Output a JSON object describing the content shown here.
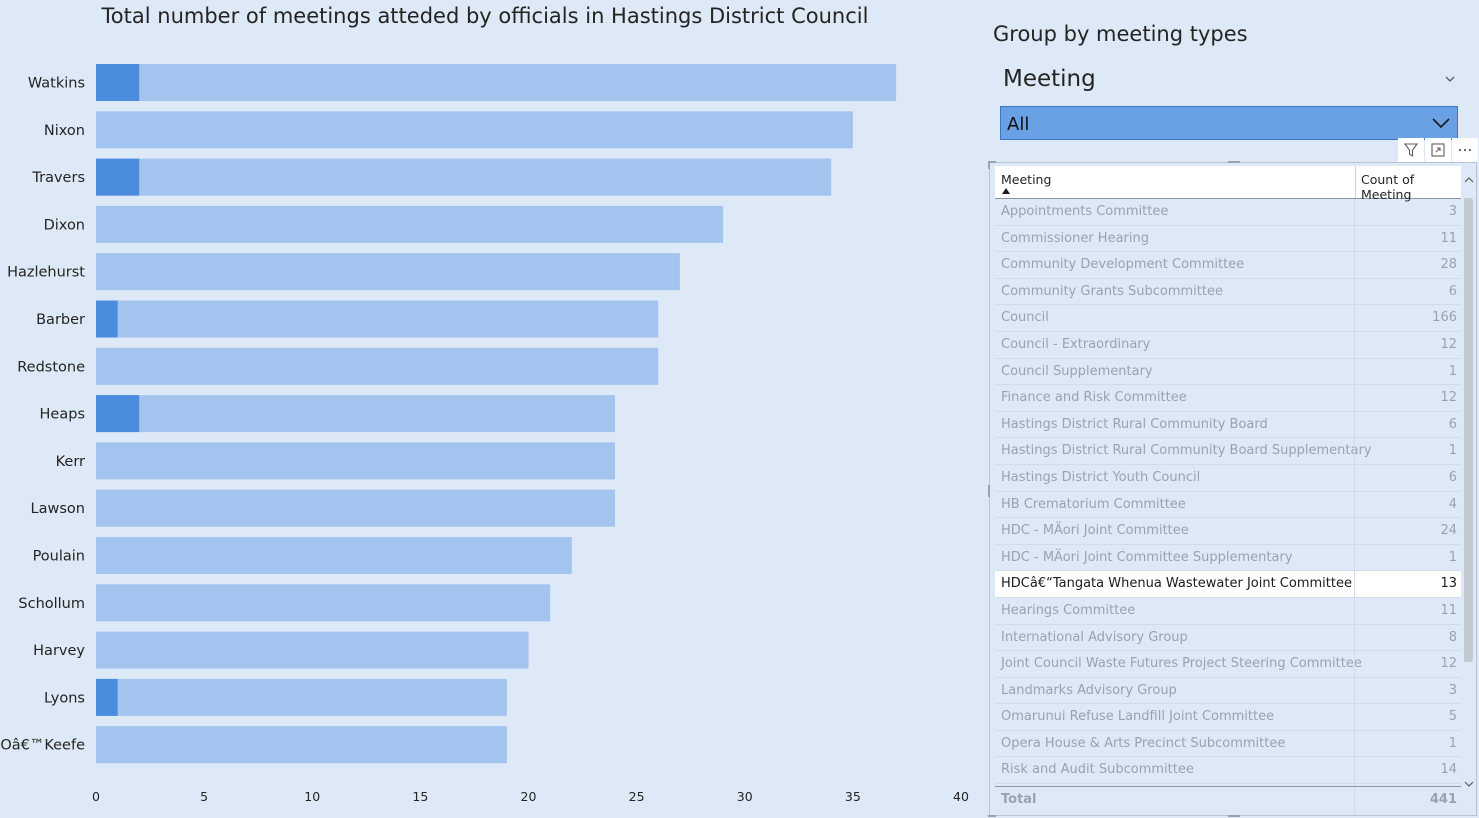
{
  "chart": {
    "title": "Total number of meetings atteded by officials in Hastings District Council"
  },
  "chart_data": {
    "type": "bar",
    "orientation": "horizontal",
    "title": "Total number of meetings atteded by officials in Hastings District Council",
    "xlabel": "",
    "ylabel": "",
    "xlim": [
      0,
      40
    ],
    "x_ticks": [
      0,
      5,
      10,
      15,
      20,
      25,
      30,
      35,
      40
    ],
    "categories": [
      "Watkins",
      "Nixon",
      "Travers",
      "Dixon",
      "Hazlehurst",
      "Barber",
      "Redstone",
      "Heaps",
      "Kerr",
      "Lawson",
      "Poulain",
      "Schollum",
      "Harvey",
      "Lyons",
      "Oâ€™Keefe"
    ],
    "total_values": [
      37,
      35,
      34,
      29,
      27,
      26,
      26,
      24,
      24,
      24,
      22,
      21,
      20,
      19,
      19
    ],
    "highlight_values": [
      2,
      0,
      2,
      0,
      0,
      1,
      0,
      2,
      0,
      0,
      0,
      0,
      0,
      1,
      0
    ],
    "grid": false,
    "colors": {
      "total": "#a3c4ee",
      "highlight": "#4a8ddf"
    }
  },
  "slicer": {
    "title": "Group by meeting types",
    "field_label": "Meeting",
    "selected_value": "All"
  },
  "table": {
    "columns": [
      "Meeting",
      "Count of Meeting"
    ],
    "rows": [
      {
        "name": "Appointments Committee",
        "count": "3"
      },
      {
        "name": "Commissioner Hearing",
        "count": "11"
      },
      {
        "name": "Community Development Committee",
        "count": "28"
      },
      {
        "name": "Community Grants Subcommittee",
        "count": "6"
      },
      {
        "name": "Council",
        "count": "166"
      },
      {
        "name": "Council - Extraordinary",
        "count": "12"
      },
      {
        "name": "Council Supplementary",
        "count": "1"
      },
      {
        "name": "Finance and Risk Committee",
        "count": "12"
      },
      {
        "name": "Hastings District Rural Community Board",
        "count": "6"
      },
      {
        "name": "Hastings District Rural Community Board Supplementary",
        "count": "1"
      },
      {
        "name": "Hastings District Youth Council",
        "count": "6"
      },
      {
        "name": "HB Crematorium Committee",
        "count": "4"
      },
      {
        "name": "HDC - MÄori Joint Committee",
        "count": "24"
      },
      {
        "name": "HDC - MÄori Joint Committee Supplementary",
        "count": "1"
      },
      {
        "name": "HDCâ€“Tangata Whenua Wastewater Joint Committee",
        "count": "13",
        "selected": true
      },
      {
        "name": "Hearings Committee",
        "count": "11"
      },
      {
        "name": "International Advisory Group",
        "count": "8"
      },
      {
        "name": "Joint Council Waste Futures Project Steering Committee",
        "count": "12"
      },
      {
        "name": "Landmarks Advisory Group",
        "count": "3"
      },
      {
        "name": "Omarunui Refuse Landfill Joint Committee",
        "count": "5"
      },
      {
        "name": "Opera House & Arts Precinct Subcommittee",
        "count": "1"
      },
      {
        "name": "Risk and Audit Subcommittee",
        "count": "14"
      }
    ],
    "total_label": "Total",
    "total_value": "441"
  },
  "icons": {
    "filter": "filter-icon",
    "focus": "focus-mode-icon",
    "more": "more-options-icon"
  }
}
